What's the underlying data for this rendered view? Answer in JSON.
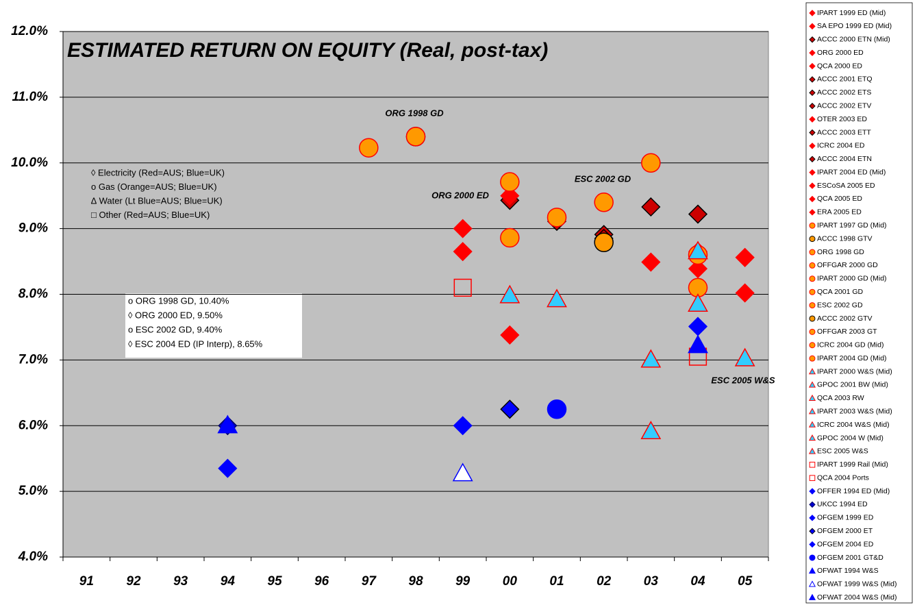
{
  "chart_data": {
    "type": "scatter",
    "title": "ESTIMATED RETURN ON EQUITY (Real, post-tax)",
    "annotations": [
      "ORG 1998 GD",
      "ORG 2000 ED",
      "ESC 2002 GD",
      "ESC 2005 W&S"
    ],
    "notes": [
      "◊ Electricity (Red=AUS; Blue=UK)",
      "o  Gas  (Orange=AUS; Blue=UK)",
      "∆ Water  (Lt Blue=AUS; Blue=UK)",
      "□ Other  (Red=AUS; Blue=UK)"
    ],
    "box_lines": [
      "o ORG 1998 GD, 10.40%",
      "◊ ORG 2000 ED, 9.50%",
      "o ESC 2002 GD, 9.40%",
      "◊ ESC 2004 ED (IP Interp), 8.65%"
    ],
    "categories": [
      "91",
      "92",
      "93",
      "94",
      "95",
      "96",
      "97",
      "98",
      "99",
      "00",
      "01",
      "02",
      "03",
      "04",
      "05"
    ],
    "ylim": [
      4,
      12
    ],
    "yticks": [
      {
        "value": 4,
        "label": "4.0%"
      },
      {
        "value": 5,
        "label": "5.0%"
      },
      {
        "value": 6,
        "label": "6.0%"
      },
      {
        "value": 7,
        "label": "7.0%"
      },
      {
        "value": 8,
        "label": "8.0%"
      },
      {
        "value": 9,
        "label": "9.0%"
      },
      {
        "value": 10,
        "label": "10.0%"
      },
      {
        "value": 11,
        "label": "11.0%"
      },
      {
        "value": 12,
        "label": "12.0%"
      }
    ],
    "grid": true,
    "series": [
      {
        "name": "IPART 1999 ED (Mid)",
        "marker": "diamond",
        "color": "#ff0000",
        "edge": "#ff0000",
        "x": [
          "99"
        ],
        "values": [
          9.0
        ]
      },
      {
        "name": "SA EPO 1999 ED (Mid)",
        "marker": "diamond",
        "color": "#ff0000",
        "edge": "#ff0000",
        "x": [
          "99"
        ],
        "values": [
          8.65
        ]
      },
      {
        "name": "ACCC 2000 ETN (Mid)",
        "marker": "diamond",
        "color": "#cc0000",
        "edge": "#000000",
        "x": [
          "00"
        ],
        "values": [
          9.43
        ]
      },
      {
        "name": "ORG 2000 ED",
        "marker": "diamond",
        "color": "#ff0000",
        "edge": "#ff0000",
        "x": [
          "00"
        ],
        "values": [
          9.5
        ]
      },
      {
        "name": "QCA 2000 ED",
        "marker": "diamond",
        "color": "#ff0000",
        "edge": "#ff0000",
        "x": [
          "00"
        ],
        "values": [
          7.38
        ]
      },
      {
        "name": "ACCC 2001 ETQ",
        "marker": "diamond",
        "color": "#cc0000",
        "edge": "#000000",
        "x": [
          "01"
        ],
        "values": [
          9.11
        ]
      },
      {
        "name": "ACCC 2002 ETS",
        "marker": "diamond",
        "color": "#cc0000",
        "edge": "#000000",
        "x": [
          "02"
        ],
        "values": [
          8.91
        ]
      },
      {
        "name": "ACCC 2002 ETV",
        "marker": "diamond",
        "color": "#cc0000",
        "edge": "#000000",
        "x": [
          "02"
        ],
        "values": [
          8.85
        ]
      },
      {
        "name": "OTER 2003 ED",
        "marker": "diamond",
        "color": "#ff0000",
        "edge": "#ff0000",
        "x": [
          "03"
        ],
        "values": [
          8.49
        ]
      },
      {
        "name": "ACCC 2003 ETT",
        "marker": "diamond",
        "color": "#cc0000",
        "edge": "#000000",
        "x": [
          "03"
        ],
        "values": [
          9.33
        ]
      },
      {
        "name": "ICRC 2004 ED",
        "marker": "diamond",
        "color": "#ff0000",
        "edge": "#ff0000",
        "x": [
          "04"
        ],
        "values": [
          8.39
        ]
      },
      {
        "name": "ACCC 2004 ETN",
        "marker": "diamond",
        "color": "#cc0000",
        "edge": "#000000",
        "x": [
          "04"
        ],
        "values": [
          9.22
        ]
      },
      {
        "name": "IPART 2004 ED (Mid)",
        "marker": "diamond",
        "color": "#ff0000",
        "edge": "#ff0000",
        "x": [
          "04"
        ],
        "values": [
          8.65
        ]
      },
      {
        "name": "ESCoSA 2005 ED",
        "marker": "diamond",
        "color": "#ff0000",
        "edge": "#ff0000",
        "x": [
          "05"
        ],
        "values": [
          8.56
        ]
      },
      {
        "name": "QCA 2005 ED",
        "marker": "diamond",
        "color": "#ff0000",
        "edge": "#ff0000",
        "x": [
          "05"
        ],
        "values": [
          8.02
        ]
      },
      {
        "name": "ERA 2005 ED",
        "marker": "diamond",
        "color": "#ff0000",
        "edge": "#ff0000",
        "x": [
          "05"
        ],
        "values": [
          8.56
        ]
      },
      {
        "name": "IPART 1997 GD (Mid)",
        "marker": "circle",
        "color": "#ff9900",
        "edge": "#ff0000",
        "x": [
          "97"
        ],
        "values": [
          10.23
        ]
      },
      {
        "name": "ACCC 1998 GTV",
        "marker": "circle",
        "color": "#ff9900",
        "edge": "#000000",
        "x": [
          "98"
        ],
        "values": [
          10.4
        ]
      },
      {
        "name": "ORG 1998 GD",
        "marker": "circle",
        "color": "#ff9900",
        "edge": "#ff0000",
        "x": [
          "98"
        ],
        "values": [
          10.4
        ]
      },
      {
        "name": "OFFGAR 2000 GD",
        "marker": "circle",
        "color": "#ff9900",
        "edge": "#ff0000",
        "x": [
          "00"
        ],
        "values": [
          9.71
        ]
      },
      {
        "name": "IPART 2000 GD (Mid)",
        "marker": "circle",
        "color": "#ff9900",
        "edge": "#ff0000",
        "x": [
          "00"
        ],
        "values": [
          8.86
        ]
      },
      {
        "name": "QCA 2001 GD",
        "marker": "circle",
        "color": "#ff9900",
        "edge": "#ff0000",
        "x": [
          "01"
        ],
        "values": [
          9.17
        ]
      },
      {
        "name": "ESC 2002 GD",
        "marker": "circle",
        "color": "#ff9900",
        "edge": "#ff0000",
        "x": [
          "02"
        ],
        "values": [
          9.4
        ]
      },
      {
        "name": "ACCC 2002 GTV",
        "marker": "circle",
        "color": "#ff9900",
        "edge": "#000000",
        "x": [
          "02"
        ],
        "values": [
          8.79
        ]
      },
      {
        "name": "OFFGAR 2003 GT",
        "marker": "circle",
        "color": "#ff9900",
        "edge": "#ff0000",
        "x": [
          "03"
        ],
        "values": [
          10.0
        ]
      },
      {
        "name": "ICRC 2004 GD (Mid)",
        "marker": "circle",
        "color": "#ff9900",
        "edge": "#ff0000",
        "x": [
          "04"
        ],
        "values": [
          8.6
        ]
      },
      {
        "name": "IPART 2004 GD (Mid)",
        "marker": "circle",
        "color": "#ff9900",
        "edge": "#ff0000",
        "x": [
          "04"
        ],
        "values": [
          8.1
        ]
      },
      {
        "name": "IPART 2000 W&S (Mid)",
        "marker": "triangle",
        "color": "#33ccff",
        "edge": "#ff0000",
        "x": [
          "00"
        ],
        "values": [
          7.98
        ]
      },
      {
        "name": "GPOC 2001 BW (Mid)",
        "marker": "triangle",
        "color": "#33ccff",
        "edge": "#ff0000",
        "x": [
          "01"
        ],
        "values": [
          7.92
        ]
      },
      {
        "name": "QCA 2003 RW",
        "marker": "triangle",
        "color": "#33ccff",
        "edge": "#ff0000",
        "x": [
          "03"
        ],
        "values": [
          7.0
        ]
      },
      {
        "name": "IPART 2003 W&S (Mid)",
        "marker": "triangle",
        "color": "#33ccff",
        "edge": "#ff0000",
        "x": [
          "03"
        ],
        "values": [
          5.91
        ]
      },
      {
        "name": "ICRC 2004 W&S (Mid)",
        "marker": "triangle",
        "color": "#33ccff",
        "edge": "#ff0000",
        "x": [
          "04"
        ],
        "values": [
          8.65
        ]
      },
      {
        "name": "GPOC 2004 W (Mid)",
        "marker": "triangle",
        "color": "#33ccff",
        "edge": "#ff0000",
        "x": [
          "04"
        ],
        "values": [
          7.85
        ]
      },
      {
        "name": "ESC 2005 W&S",
        "marker": "triangle",
        "color": "#33ccff",
        "edge": "#ff0000",
        "x": [
          "05"
        ],
        "values": [
          7.02
        ]
      },
      {
        "name": "IPART 1999 Rail (Mid)",
        "marker": "square",
        "color": "none",
        "edge": "#ff0000",
        "x": [
          "99"
        ],
        "values": [
          8.1
        ]
      },
      {
        "name": "QCA 2004 Ports",
        "marker": "square",
        "color": "none",
        "edge": "#ff0000",
        "x": [
          "04"
        ],
        "values": [
          7.05
        ]
      },
      {
        "name": "OFFER 1994 ED (Mid)",
        "marker": "diamond",
        "color": "#0000ff",
        "edge": "#0000ff",
        "x": [
          "94"
        ],
        "values": [
          5.35
        ]
      },
      {
        "name": "UKCC 1994 ED",
        "marker": "diamond",
        "color": "#0000cc",
        "edge": "#000066",
        "x": [
          "94"
        ],
        "values": [
          6.0
        ]
      },
      {
        "name": "OFGEM 1999 ED",
        "marker": "diamond",
        "color": "#0000ff",
        "edge": "#0000ff",
        "x": [
          "99"
        ],
        "values": [
          6.0
        ]
      },
      {
        "name": "OFGEM 2000 ET",
        "marker": "diamond",
        "color": "#0000ff",
        "edge": "#000000",
        "x": [
          "00"
        ],
        "values": [
          6.25
        ]
      },
      {
        "name": "OFGEM 2004 ED",
        "marker": "diamond",
        "color": "#0000ff",
        "edge": "#0000ff",
        "x": [
          "04"
        ],
        "values": [
          7.51
        ]
      },
      {
        "name": "OFGEM 2001 GT&D",
        "marker": "circle",
        "color": "#0000ff",
        "edge": "#0000ff",
        "x": [
          "01"
        ],
        "values": [
          6.25
        ]
      },
      {
        "name": "OFWAT 1994 W&S",
        "marker": "triangle",
        "color": "#0000ff",
        "edge": "#0000ff",
        "x": [
          "94"
        ],
        "values": [
          6.0
        ]
      },
      {
        "name": "OFWAT 1999 W&S (Mid)",
        "marker": "triangle",
        "color": "#ffffff",
        "edge": "#0000ff",
        "x": [
          "99"
        ],
        "values": [
          5.27
        ]
      },
      {
        "name": "OFWAT 2004 W&S (Mid)",
        "marker": "triangle",
        "color": "#0000ff",
        "edge": "#0000ff",
        "x": [
          "04"
        ],
        "values": [
          7.22
        ]
      }
    ]
  }
}
